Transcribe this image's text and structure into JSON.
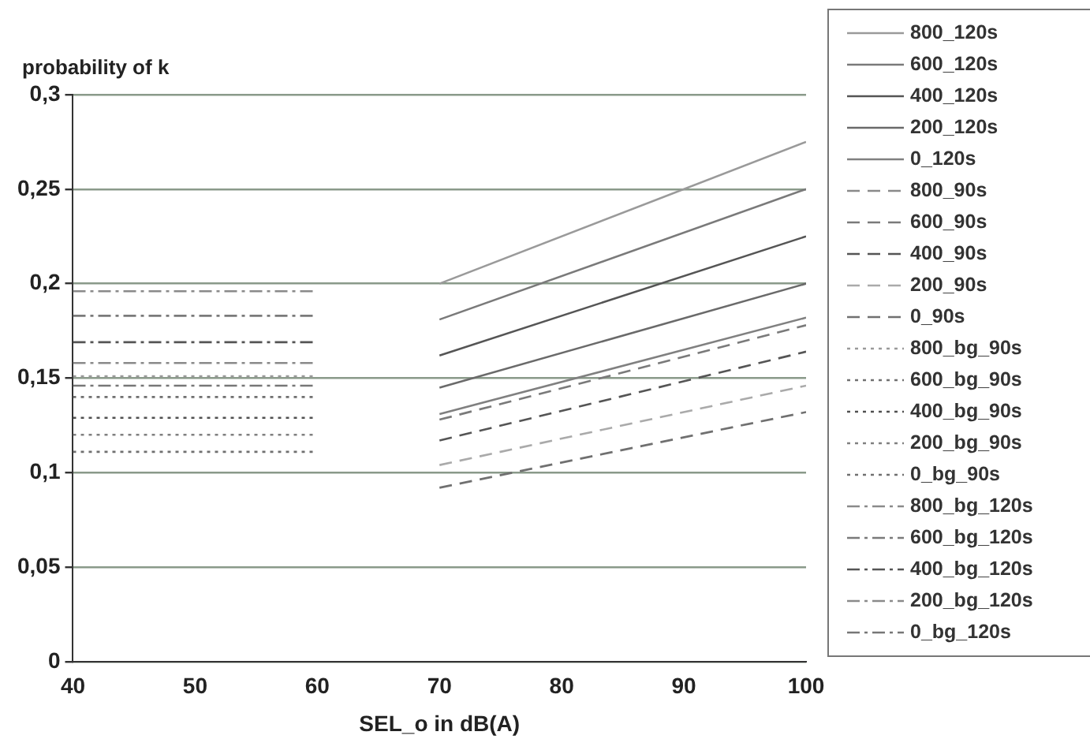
{
  "chart_data": {
    "type": "line",
    "xlabel": "SEL_o in dB(A)",
    "ylabel": "probability of k",
    "xlim": [
      40,
      100
    ],
    "xticks": [
      40,
      50,
      60,
      70,
      80,
      90,
      100
    ],
    "ylim": [
      0,
      0.3
    ],
    "yticks": [
      {
        "value": 0,
        "label": "0"
      },
      {
        "value": 0.05,
        "label": "0,05"
      },
      {
        "value": 0.1,
        "label": "0,1"
      },
      {
        "value": 0.15,
        "label": "0,15"
      },
      {
        "value": 0.2,
        "label": "0,2"
      },
      {
        "value": 0.25,
        "label": "0,25"
      },
      {
        "value": 0.3,
        "label": "0,3"
      }
    ],
    "grid": "y",
    "legend": "right",
    "marker": "none",
    "series": [
      {
        "name": "800_120s",
        "color": "#9a9a9a",
        "line_style": "solid",
        "x": [
          70,
          100
        ],
        "values": [
          0.2,
          0.275
        ]
      },
      {
        "name": "600_120s",
        "color": "#7a7a7a",
        "line_style": "solid",
        "x": [
          70,
          100
        ],
        "values": [
          0.181,
          0.25
        ]
      },
      {
        "name": "400_120s",
        "color": "#555555",
        "line_style": "solid",
        "x": [
          70,
          100
        ],
        "values": [
          0.162,
          0.225
        ]
      },
      {
        "name": "200_120s",
        "color": "#6a6a6a",
        "line_style": "solid",
        "x": [
          70,
          100
        ],
        "values": [
          0.145,
          0.2
        ]
      },
      {
        "name": "0_120s",
        "color": "#808080",
        "line_style": "solid",
        "x": [
          70,
          100
        ],
        "values": [
          0.131,
          0.182
        ]
      },
      {
        "name": "800_90s",
        "color": "#8a8a8a",
        "line_style": "dashed",
        "values": [
          null,
          null
        ]
      },
      {
        "name": "600_90s",
        "color": "#7a7a7a",
        "line_style": "dashed",
        "x": [
          70,
          100
        ],
        "values": [
          0.128,
          0.178
        ]
      },
      {
        "name": "400_90s",
        "color": "#555555",
        "line_style": "dashed",
        "x": [
          70,
          100
        ],
        "values": [
          0.117,
          0.164
        ]
      },
      {
        "name": "200_90s",
        "color": "#aaaaaa",
        "line_style": "dashed",
        "x": [
          70,
          100
        ],
        "values": [
          0.104,
          0.146
        ]
      },
      {
        "name": "0_90s",
        "color": "#707070",
        "line_style": "dashed",
        "x": [
          70,
          100
        ],
        "values": [
          0.092,
          0.132
        ]
      },
      {
        "name": "800_bg_90s",
        "color": "#9a9a9a",
        "line_style": "dotted",
        "x": [
          40,
          60
        ],
        "values": [
          0.151,
          0.151
        ]
      },
      {
        "name": "600_bg_90s",
        "color": "#707070",
        "line_style": "dotted",
        "x": [
          40,
          60
        ],
        "values": [
          0.14,
          0.14
        ]
      },
      {
        "name": "400_bg_90s",
        "color": "#505050",
        "line_style": "dotted",
        "x": [
          40,
          60
        ],
        "values": [
          0.129,
          0.129
        ]
      },
      {
        "name": "200_bg_90s",
        "color": "#808080",
        "line_style": "dotted",
        "x": [
          40,
          60
        ],
        "values": [
          0.12,
          0.12
        ]
      },
      {
        "name": "0_bg_90s",
        "color": "#707070",
        "line_style": "dotted",
        "x": [
          40,
          60
        ],
        "values": [
          0.111,
          0.111
        ]
      },
      {
        "name": "800_bg_120s",
        "color": "#8a8a8a",
        "line_style": "dashdot",
        "x": [
          40,
          60
        ],
        "values": [
          0.196,
          0.196
        ]
      },
      {
        "name": "600_bg_120s",
        "color": "#7a7a7a",
        "line_style": "dashdot",
        "x": [
          40,
          60
        ],
        "values": [
          0.183,
          0.183
        ]
      },
      {
        "name": "400_bg_120s",
        "color": "#555555",
        "line_style": "dashdot",
        "x": [
          40,
          60
        ],
        "values": [
          0.169,
          0.169
        ]
      },
      {
        "name": "200_bg_120s",
        "color": "#8a8a8a",
        "line_style": "dashdot",
        "x": [
          40,
          60
        ],
        "values": [
          0.158,
          0.158
        ]
      },
      {
        "name": "0_bg_120s",
        "color": "#777777",
        "line_style": "dashdot",
        "x": [
          40,
          60
        ],
        "values": [
          0.146,
          0.146
        ]
      }
    ]
  }
}
